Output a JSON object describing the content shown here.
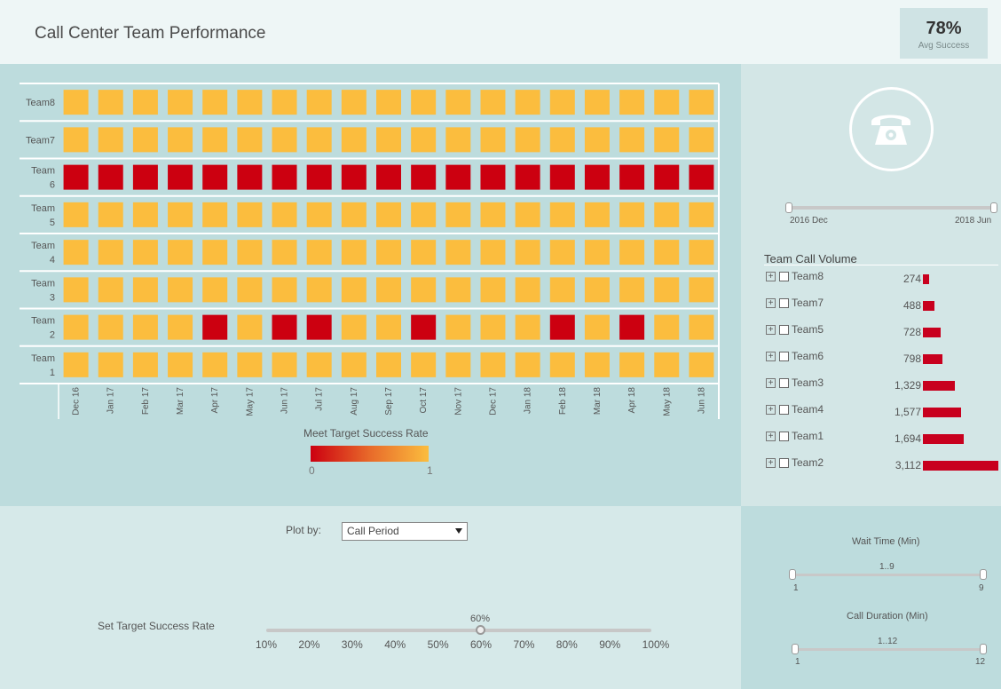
{
  "header": {
    "title": "Call Center Team Performance",
    "kpi_value": "78%",
    "kpi_label": "Avg Success"
  },
  "chart_data": {
    "type": "heatmap",
    "rows": [
      "Team8",
      "Team7",
      "Team 6",
      "Team 5",
      "Team 4",
      "Team 3",
      "Team 2",
      "Team 1"
    ],
    "columns": [
      "Dec 16",
      "Jan 17",
      "Feb 17",
      "Mar 17",
      "Apr 17",
      "May 17",
      "Jun 17",
      "Jul 17",
      "Aug 17",
      "Sep 17",
      "Oct 17",
      "Nov 17",
      "Dec 17",
      "Jan 18",
      "Feb 18",
      "Mar 18",
      "Apr 18",
      "May 18",
      "Jun 18"
    ],
    "values": [
      [
        1,
        1,
        1,
        1,
        1,
        1,
        1,
        1,
        1,
        1,
        1,
        1,
        1,
        1,
        1,
        1,
        1,
        1,
        1
      ],
      [
        1,
        1,
        1,
        1,
        1,
        1,
        1,
        1,
        1,
        1,
        1,
        1,
        1,
        1,
        1,
        1,
        1,
        1,
        1
      ],
      [
        0,
        0,
        0,
        0,
        0,
        0,
        0,
        0,
        0,
        0,
        0,
        0,
        0,
        0,
        0,
        0,
        0,
        0,
        0
      ],
      [
        1,
        1,
        1,
        1,
        1,
        1,
        1,
        1,
        1,
        1,
        1,
        1,
        1,
        1,
        1,
        1,
        1,
        1,
        1
      ],
      [
        1,
        1,
        1,
        1,
        1,
        1,
        1,
        1,
        1,
        1,
        1,
        1,
        1,
        1,
        1,
        1,
        1,
        1,
        1
      ],
      [
        1,
        1,
        1,
        1,
        1,
        1,
        1,
        1,
        1,
        1,
        1,
        1,
        1,
        1,
        1,
        1,
        1,
        1,
        1
      ],
      [
        1,
        1,
        1,
        1,
        0,
        1,
        0,
        0,
        1,
        1,
        0,
        1,
        1,
        1,
        0,
        1,
        0,
        1,
        1
      ],
      [
        1,
        1,
        1,
        1,
        1,
        1,
        1,
        1,
        1,
        1,
        1,
        1,
        1,
        1,
        1,
        1,
        1,
        1,
        1
      ]
    ],
    "legend_title": "Meet Target Success Rate",
    "legend_min": "0",
    "legend_max": "1",
    "colors": {
      "low": "#cc0010",
      "high": "#fbbd3e"
    }
  },
  "date_slider": {
    "start_label": "2016 Dec",
    "end_label": "2018 Jun"
  },
  "call_volume": {
    "title": "Team Call Volume",
    "items": [
      {
        "name": "Team8",
        "value_label": "274",
        "value": 274
      },
      {
        "name": "Team7",
        "value_label": "488",
        "value": 488
      },
      {
        "name": "Team5",
        "value_label": "728",
        "value": 728
      },
      {
        "name": "Team6",
        "value_label": "798",
        "value": 798
      },
      {
        "name": "Team3",
        "value_label": "1,329",
        "value": 1329
      },
      {
        "name": "Team4",
        "value_label": "1,577",
        "value": 1577
      },
      {
        "name": "Team1",
        "value_label": "1,694",
        "value": 1694
      },
      {
        "name": "Team2",
        "value_label": "3,112",
        "value": 3112
      }
    ],
    "bar_color": "#c8001e"
  },
  "plot_by": {
    "label": "Plot by:",
    "selected": "Call Period"
  },
  "target": {
    "label": "Set Target Success Rate",
    "value_label": "60%",
    "ticks": [
      "10%",
      "20%",
      "30%",
      "40%",
      "50%",
      "60%",
      "70%",
      "80%",
      "90%",
      "100%"
    ]
  },
  "wait_time": {
    "title": "Wait Time (Min)",
    "range_label": "1..9",
    "min_label": "1",
    "max_label": "9"
  },
  "call_duration": {
    "title": "Call Duration (Min)",
    "range_label": "1..12",
    "min_label": "1",
    "max_label": "12"
  }
}
